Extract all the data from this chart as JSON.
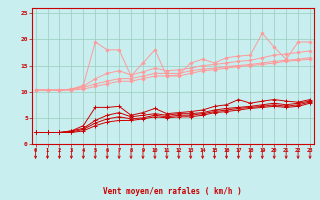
{
  "x": [
    0,
    1,
    2,
    3,
    4,
    5,
    6,
    7,
    8,
    9,
    10,
    11,
    12,
    13,
    14,
    15,
    16,
    17,
    18,
    19,
    20,
    21,
    22,
    23
  ],
  "lines_salmon": [
    [
      10.3,
      10.3,
      10.3,
      10.5,
      11.2,
      19.5,
      18.0,
      18.0,
      13.0,
      15.5,
      18.0,
      13.0,
      13.2,
      15.5,
      16.2,
      15.5,
      16.5,
      16.8,
      17.0,
      21.2,
      18.5,
      16.2,
      19.5,
      19.5
    ],
    [
      10.3,
      10.3,
      10.3,
      10.5,
      11.0,
      12.5,
      13.5,
      14.0,
      13.2,
      13.8,
      14.5,
      14.0,
      14.2,
      14.5,
      15.0,
      15.2,
      15.5,
      15.8,
      16.0,
      16.5,
      17.0,
      17.2,
      17.5,
      17.8
    ],
    [
      10.3,
      10.3,
      10.3,
      10.4,
      10.8,
      11.5,
      12.0,
      12.5,
      12.5,
      13.0,
      13.5,
      13.5,
      13.5,
      14.0,
      14.3,
      14.5,
      14.8,
      15.0,
      15.2,
      15.5,
      15.8,
      16.0,
      16.2,
      16.5
    ],
    [
      10.3,
      10.3,
      10.3,
      10.3,
      10.5,
      11.0,
      11.5,
      12.0,
      12.0,
      12.5,
      13.0,
      13.0,
      13.0,
      13.5,
      14.0,
      14.2,
      14.5,
      14.8,
      15.0,
      15.2,
      15.5,
      15.8,
      16.0,
      16.2
    ]
  ],
  "lines_red": [
    [
      2.2,
      2.2,
      2.2,
      2.5,
      3.5,
      7.0,
      7.0,
      7.2,
      5.5,
      6.0,
      6.8,
      5.8,
      6.0,
      6.2,
      6.5,
      7.2,
      7.5,
      8.5,
      7.8,
      8.2,
      8.5,
      8.2,
      8.0,
      8.5
    ],
    [
      2.2,
      2.2,
      2.2,
      2.5,
      3.0,
      4.5,
      5.5,
      6.0,
      5.2,
      5.5,
      5.8,
      5.5,
      5.8,
      5.8,
      6.0,
      6.5,
      6.8,
      7.0,
      7.2,
      7.5,
      7.8,
      7.5,
      7.8,
      8.2
    ],
    [
      2.2,
      2.2,
      2.2,
      2.3,
      2.8,
      4.0,
      4.8,
      5.2,
      4.8,
      5.0,
      5.5,
      5.2,
      5.5,
      5.5,
      5.8,
      6.2,
      6.5,
      6.8,
      7.0,
      7.2,
      7.5,
      7.2,
      7.5,
      8.0
    ],
    [
      2.2,
      2.2,
      2.2,
      2.2,
      2.5,
      3.5,
      4.2,
      4.5,
      4.5,
      4.8,
      5.2,
      5.0,
      5.2,
      5.2,
      5.5,
      6.0,
      6.2,
      6.5,
      6.8,
      7.0,
      7.2,
      7.0,
      7.2,
      7.8
    ]
  ],
  "color_salmon": "#FF9999",
  "color_red": "#CC0000",
  "bg_color": "#C8EEF0",
  "grid_color": "#99CCBB",
  "xlabel": "Vent moyen/en rafales ( km/h )",
  "yticks": [
    0,
    5,
    10,
    15,
    20,
    25
  ],
  "xticks": [
    0,
    1,
    2,
    3,
    4,
    5,
    6,
    7,
    8,
    9,
    10,
    11,
    12,
    13,
    14,
    15,
    16,
    17,
    18,
    19,
    20,
    21,
    22,
    23
  ],
  "ylim": [
    0,
    26
  ],
  "xlim": [
    -0.3,
    23.3
  ]
}
